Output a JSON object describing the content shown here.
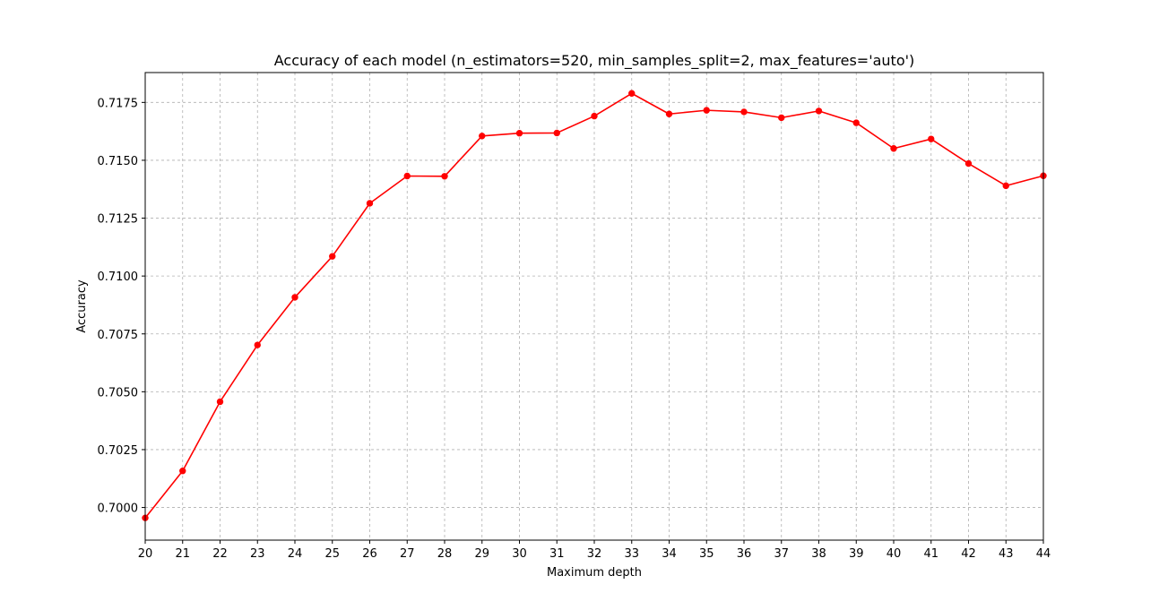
{
  "chart_data": {
    "type": "line",
    "title": "Accuracy of each model (n_estimators=520, min_samples_split=2, max_features='auto')",
    "xlabel": "Maximum depth",
    "ylabel": "Accuracy",
    "xlim": [
      20,
      44
    ],
    "ylim": [
      0.69859,
      0.71879
    ],
    "grid": true,
    "x_ticks": [
      20,
      21,
      22,
      23,
      24,
      25,
      26,
      27,
      28,
      29,
      30,
      31,
      32,
      33,
      34,
      35,
      36,
      37,
      38,
      39,
      40,
      41,
      42,
      43,
      44
    ],
    "y_ticks": [
      0.7,
      0.7025,
      0.705,
      0.7075,
      0.71,
      0.7125,
      0.715,
      0.7175
    ],
    "y_tick_labels": [
      "0.7000",
      "0.7025",
      "0.7050",
      "0.7075",
      "0.7100",
      "0.7125",
      "0.7150",
      "0.7175"
    ],
    "series": [
      {
        "color": "#ff0000",
        "marker": "circle",
        "x": [
          20,
          21,
          22,
          23,
          24,
          25,
          26,
          27,
          28,
          29,
          30,
          31,
          32,
          33,
          34,
          35,
          36,
          37,
          38,
          39,
          40,
          41,
          42,
          43,
          44
        ],
        "y": [
          0.69955,
          0.70158,
          0.70457,
          0.70702,
          0.70908,
          0.71085,
          0.71314,
          0.71432,
          0.71431,
          0.71605,
          0.71617,
          0.71618,
          0.71691,
          0.71789,
          0.717,
          0.71716,
          0.71709,
          0.71684,
          0.71713,
          0.71662,
          0.71551,
          0.71592,
          0.71486,
          0.7139,
          0.71433
        ]
      }
    ]
  }
}
